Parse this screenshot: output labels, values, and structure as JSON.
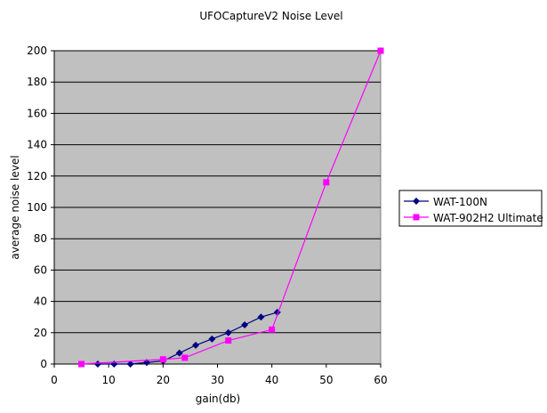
{
  "chart_data": {
    "type": "line",
    "title": "UFOCaptureV2 Noise Level",
    "xlabel": "gain(db)",
    "ylabel": "average noise level",
    "xlim": [
      0,
      60
    ],
    "ylim": [
      0,
      200
    ],
    "xticks": [
      0,
      10,
      20,
      30,
      40,
      50,
      60
    ],
    "yticks": [
      0,
      20,
      40,
      60,
      80,
      100,
      120,
      140,
      160,
      180,
      200
    ],
    "grid": "horizontal",
    "plot_background": "#c0c0c0",
    "legend_placement": "right",
    "series": [
      {
        "name": "WAT-100N",
        "color": "#000080",
        "marker": "diamond",
        "x": [
          8,
          11,
          14,
          17,
          20,
          23,
          26,
          29,
          32,
          35,
          38,
          41
        ],
        "y": [
          0,
          0,
          0,
          1,
          2,
          7,
          12,
          16,
          20,
          25,
          30,
          33
        ]
      },
      {
        "name": "WAT-902H2 Ultimate",
        "color": "#ff00ff",
        "marker": "square",
        "x": [
          5,
          20,
          24,
          32,
          40,
          50,
          60
        ],
        "y": [
          0,
          3,
          4,
          15,
          22,
          116,
          200
        ]
      }
    ]
  }
}
